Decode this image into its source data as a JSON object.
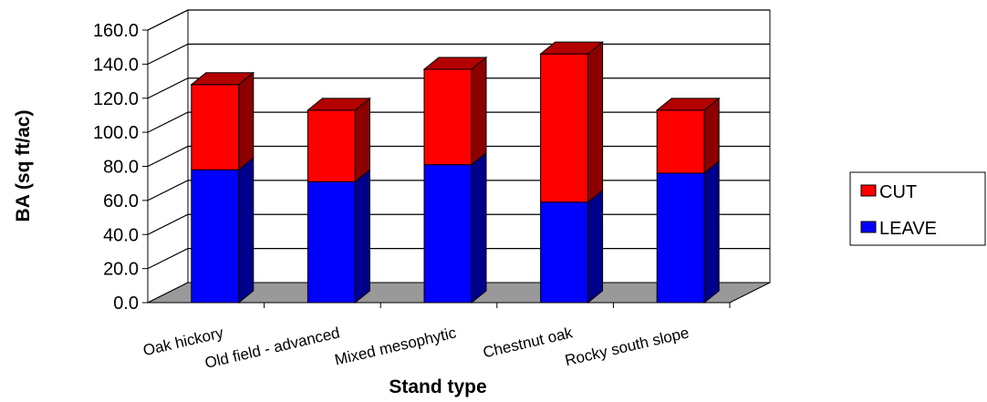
{
  "chart_data": {
    "type": "bar",
    "stacked": true,
    "three_d": true,
    "categories": [
      "Oak hickory",
      "Old field - advanced",
      "Mixed mesophytic",
      "Chestnut oak",
      "Rocky south slope"
    ],
    "series": [
      {
        "name": "LEAVE",
        "values": [
          78,
          71,
          81,
          59,
          76
        ],
        "color": "#0000ff"
      },
      {
        "name": "CUT",
        "values": [
          50,
          42,
          56,
          87,
          37
        ],
        "color": "#ff0000"
      }
    ],
    "legend_order": [
      "CUT",
      "LEAVE"
    ],
    "xlabel": "Stand type",
    "ylabel": "BA (sq ft/ac)",
    "ylim": [
      0,
      160
    ],
    "yticks": [
      "0.0",
      "20.0",
      "40.0",
      "60.0",
      "80.0",
      "100.0",
      "120.0",
      "140.0",
      "160.0"
    ],
    "grid": true,
    "legend_position": "right",
    "colors": {
      "floor": "#999999",
      "gridline": "#000000"
    }
  }
}
